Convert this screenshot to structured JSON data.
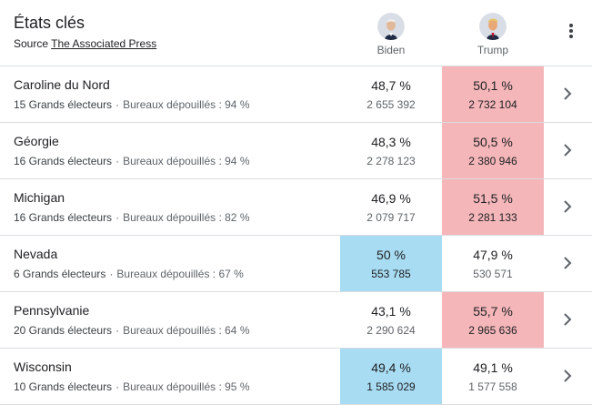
{
  "header": {
    "title": "États clés",
    "source_prefix": "Source",
    "source_link": "The Associated Press",
    "candidates": [
      {
        "name": "Biden",
        "icon": "biden-avatar-icon"
      },
      {
        "name": "Trump",
        "icon": "trump-avatar-icon"
      }
    ],
    "menu_icon": "more-vert-icon"
  },
  "colors": {
    "trump_win": "#f4b6b9",
    "biden_win": "#a8dcf2",
    "divider": "#dadce0"
  },
  "states": [
    {
      "name": "Caroline du Nord",
      "electors": "15 Grands électeurs",
      "reporting": "Bureaux dépouillés : 94 %",
      "biden_pct": "48,7 %",
      "biden_votes": "2 655 392",
      "trump_pct": "50,1 %",
      "trump_votes": "2 732 104",
      "leader": "trump"
    },
    {
      "name": "Géorgie",
      "electors": "16 Grands électeurs",
      "reporting": "Bureaux dépouillés : 94 %",
      "biden_pct": "48,3 %",
      "biden_votes": "2 278 123",
      "trump_pct": "50,5 %",
      "trump_votes": "2 380 946",
      "leader": "trump"
    },
    {
      "name": "Michigan",
      "electors": "16 Grands électeurs",
      "reporting": "Bureaux dépouillés : 82 %",
      "biden_pct": "46,9 %",
      "biden_votes": "2 079 717",
      "trump_pct": "51,5 %",
      "trump_votes": "2 281 133",
      "leader": "trump"
    },
    {
      "name": "Nevada",
      "electors": "6 Grands électeurs",
      "reporting": "Bureaux dépouillés : 67 %",
      "biden_pct": "50 %",
      "biden_votes": "553 785",
      "trump_pct": "47,9 %",
      "trump_votes": "530 571",
      "leader": "biden"
    },
    {
      "name": "Pennsylvanie",
      "electors": "20 Grands électeurs",
      "reporting": "Bureaux dépouillés : 64 %",
      "biden_pct": "43,1 %",
      "biden_votes": "2 290 624",
      "trump_pct": "55,7 %",
      "trump_votes": "2 965 636",
      "leader": "trump"
    },
    {
      "name": "Wisconsin",
      "electors": "10 Grands électeurs",
      "reporting": "Bureaux dépouillés : 95 %",
      "biden_pct": "49,4 %",
      "biden_votes": "1 585 029",
      "trump_pct": "49,1 %",
      "trump_votes": "1 577 558",
      "leader": "biden"
    }
  ]
}
